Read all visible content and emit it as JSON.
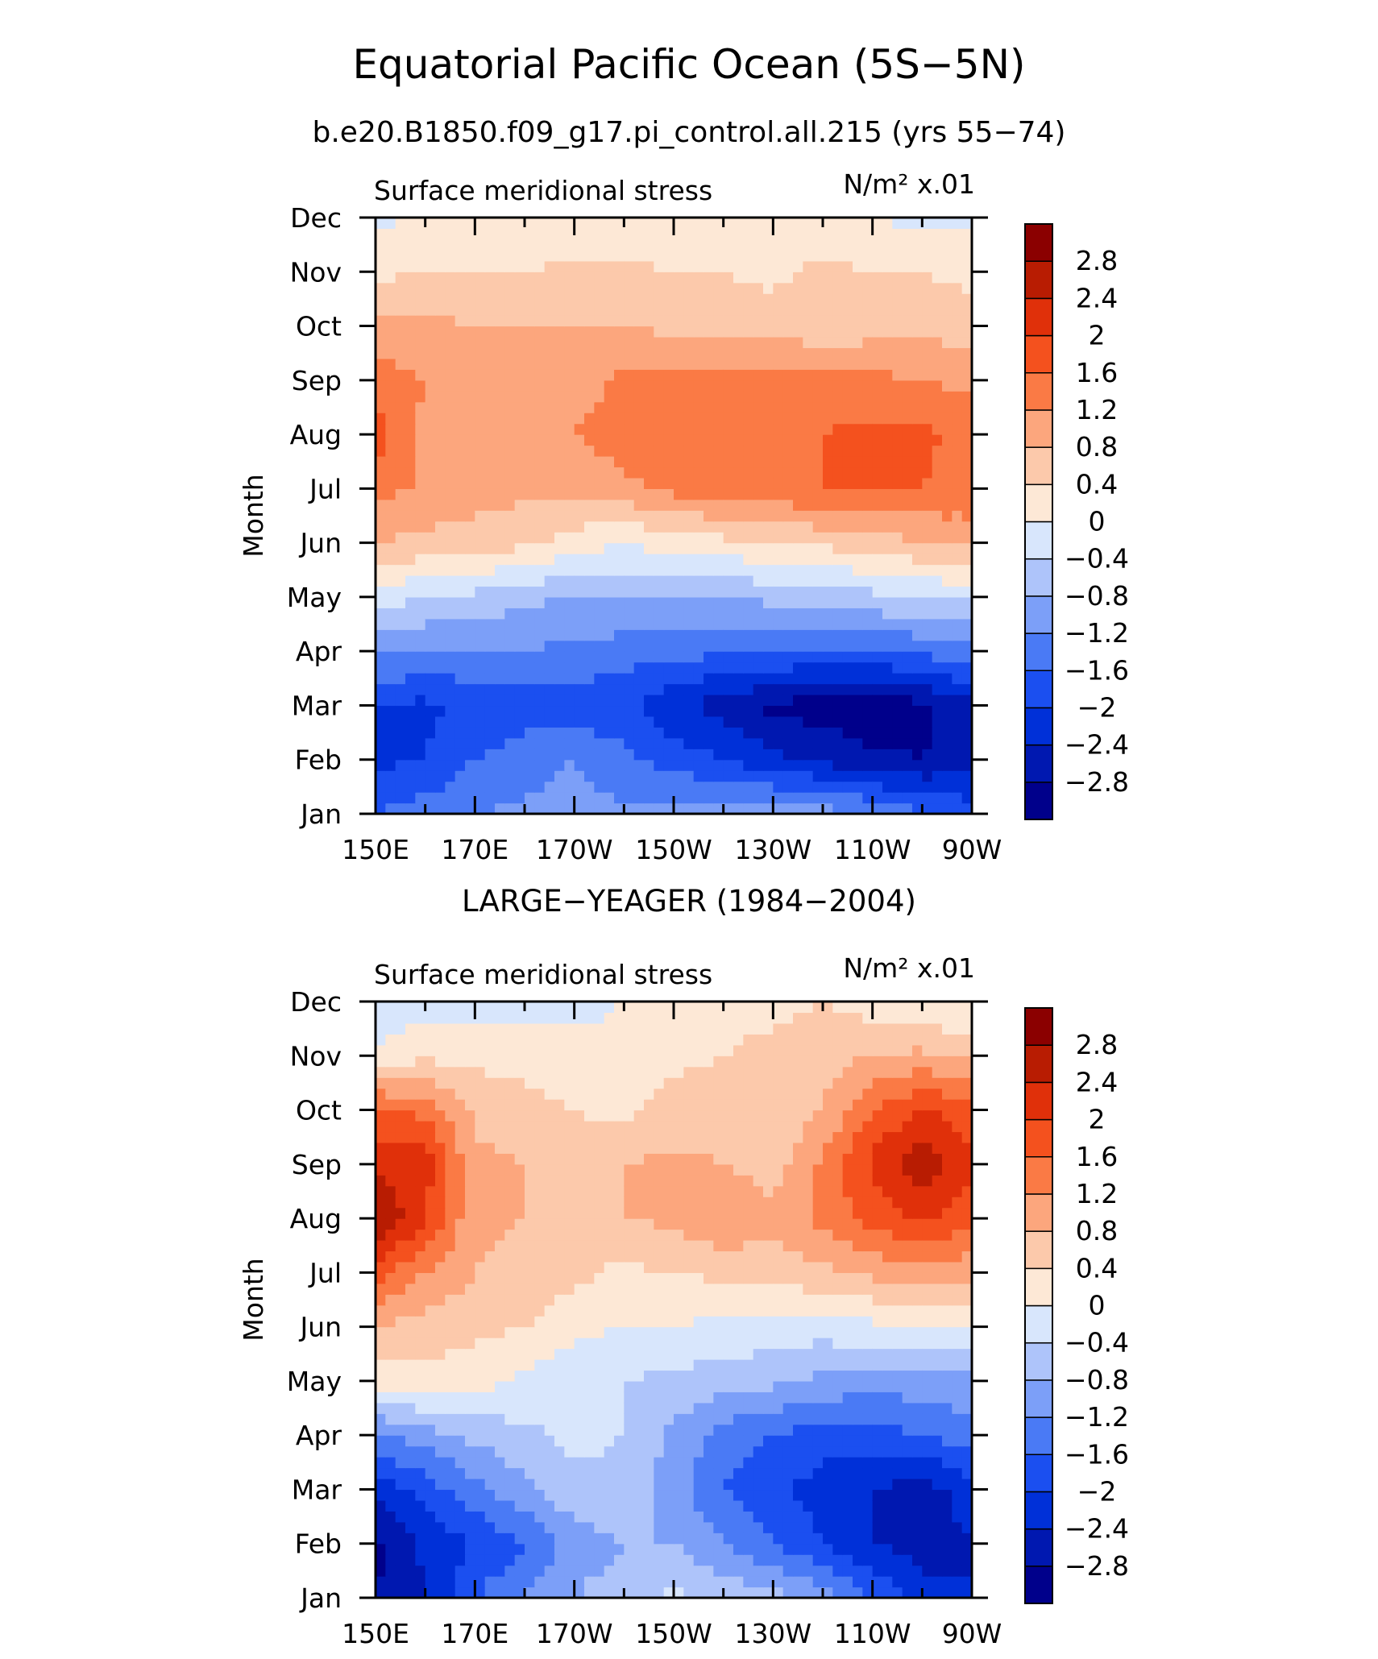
{
  "figure": {
    "title": "Equatorial Pacific Ocean (5S−5N)",
    "subtitle": "b.e20.B1850.f09_g17.pi_control.all.215 (yrs 55−74)"
  },
  "chart_data": [
    {
      "type": "heatmap",
      "variant": "filled-contour (Hovmöller)",
      "panel_title": "",
      "title": "Surface meridional stress",
      "units": "N/m² x.01",
      "xlabel": "",
      "ylabel": "Month",
      "x_tick_labels": [
        "150E",
        "170E",
        "170W",
        "150W",
        "130W",
        "110W",
        "90W"
      ],
      "y_tick_labels": [
        "Jan",
        "Feb",
        "Mar",
        "Apr",
        "May",
        "Jun",
        "Jul",
        "Aug",
        "Sep",
        "Oct",
        "Nov",
        "Dec"
      ],
      "x": [
        150,
        160,
        170,
        180,
        190,
        200,
        210,
        220,
        230,
        240,
        250,
        260,
        270
      ],
      "y": [
        "Jan",
        "Feb",
        "Mar",
        "Apr",
        "May",
        "Jun",
        "Jul",
        "Aug",
        "Sep",
        "Oct",
        "Nov",
        "Dec"
      ],
      "z": [
        [
          -1.6,
          -1.4,
          -1.2,
          -1.1,
          -1.0,
          -1.1,
          -1.0,
          -0.9,
          -0.9,
          -1.0,
          -1.2,
          -1.5,
          -1.8
        ],
        [
          -2.1,
          -2.0,
          -1.6,
          -1.4,
          -1.2,
          -1.5,
          -1.8,
          -2.0,
          -2.3,
          -2.5,
          -2.7,
          -2.8,
          -2.6
        ],
        [
          -2.0,
          -2.1,
          -1.9,
          -1.8,
          -1.8,
          -1.9,
          -2.3,
          -2.6,
          -2.9,
          -3.0,
          -3.1,
          -2.9,
          -2.5
        ],
        [
          -1.1,
          -1.2,
          -1.2,
          -1.2,
          -1.3,
          -1.4,
          -1.5,
          -1.5,
          -1.6,
          -1.6,
          -1.6,
          -1.5,
          -1.3
        ],
        [
          -0.2,
          -0.4,
          -0.5,
          -0.7,
          -0.8,
          -0.8,
          -0.8,
          -0.8,
          -0.7,
          -0.6,
          -0.5,
          -0.4,
          -0.3
        ],
        [
          0.8,
          0.7,
          0.6,
          0.5,
          0.2,
          0.0,
          0.2,
          0.3,
          0.4,
          0.5,
          0.6,
          0.8,
          0.9
        ],
        [
          1.4,
          1.1,
          1.0,
          0.9,
          0.9,
          1.1,
          1.3,
          1.4,
          1.5,
          1.6,
          1.7,
          1.6,
          1.5
        ],
        [
          1.8,
          1.1,
          1.1,
          1.1,
          1.2,
          1.4,
          1.5,
          1.5,
          1.5,
          1.6,
          1.7,
          1.7,
          1.4
        ],
        [
          1.4,
          1.2,
          1.1,
          1.0,
          1.0,
          1.3,
          1.3,
          1.4,
          1.4,
          1.4,
          1.3,
          1.2,
          1.1
        ],
        [
          1.0,
          0.9,
          0.8,
          0.8,
          0.8,
          0.8,
          0.7,
          0.7,
          0.6,
          0.5,
          0.6,
          0.7,
          0.6
        ],
        [
          0.3,
          0.4,
          0.4,
          0.4,
          0.5,
          0.5,
          0.4,
          0.4,
          0.3,
          0.5,
          0.4,
          0.4,
          0.3
        ],
        [
          -0.1,
          0.1,
          0.1,
          0.1,
          0.1,
          0.1,
          0.1,
          0.1,
          0.1,
          0.1,
          0.0,
          -0.1,
          -0.1
        ]
      ],
      "colorbar": {
        "levels": [
          -2.8,
          -2.4,
          -2.0,
          -1.6,
          -1.2,
          -0.8,
          -0.4,
          0,
          0.4,
          0.8,
          1.2,
          1.6,
          2.0,
          2.4,
          2.8
        ],
        "tick_labels": [
          "−2.8",
          "−2.4",
          "−2",
          "−1.6",
          "−1.2",
          "−0.8",
          "−0.4",
          "0",
          "0.4",
          "0.8",
          "1.2",
          "1.6",
          "2",
          "2.4",
          "2.8"
        ],
        "colors": [
          "#00008b",
          "#0018b0",
          "#0030d8",
          "#1b4ff0",
          "#4a7af5",
          "#7c9ff8",
          "#aec4fa",
          "#d8e6fc",
          "#fde8d6",
          "#fcc9ab",
          "#fca67d",
          "#fa7a45",
          "#f4511e",
          "#e0300a",
          "#b81c02",
          "#8b0000"
        ],
        "orientation": "vertical",
        "position": "right"
      }
    },
    {
      "type": "heatmap",
      "variant": "filled-contour (Hovmöller)",
      "panel_title": "LARGE−YEAGER (1984−2004)",
      "title": "Surface meridional stress",
      "units": "N/m² x.01",
      "xlabel": "",
      "ylabel": "Month",
      "x_tick_labels": [
        "150E",
        "170E",
        "170W",
        "150W",
        "130W",
        "110W",
        "90W"
      ],
      "y_tick_labels": [
        "Jan",
        "Feb",
        "Mar",
        "Apr",
        "May",
        "Jun",
        "Jul",
        "Aug",
        "Sep",
        "Oct",
        "Nov",
        "Dec"
      ],
      "x": [
        150,
        160,
        170,
        180,
        190,
        200,
        210,
        220,
        230,
        240,
        250,
        260,
        270
      ],
      "y": [
        "Jan",
        "Feb",
        "Mar",
        "Apr",
        "May",
        "Jun",
        "Jul",
        "Aug",
        "Sep",
        "Oct",
        "Nov",
        "Dec"
      ],
      "z": [
        [
          -2.8,
          -2.4,
          -1.6,
          -1.2,
          -0.8,
          -0.6,
          -0.3,
          -0.5,
          -0.6,
          -1.0,
          -1.6,
          -2.2,
          -2.4
        ],
        [
          -2.9,
          -2.3,
          -2.0,
          -1.6,
          -1.0,
          -0.8,
          -0.8,
          -1.2,
          -1.6,
          -2.0,
          -2.4,
          -2.6,
          -2.4
        ],
        [
          -2.3,
          -1.8,
          -1.3,
          -0.9,
          -0.5,
          -0.5,
          -1.0,
          -1.6,
          -1.9,
          -2.2,
          -2.4,
          -2.6,
          -2.2
        ],
        [
          -1.3,
          -1.0,
          -0.7,
          -0.5,
          -0.3,
          -0.4,
          -0.9,
          -1.4,
          -1.6,
          -1.8,
          -1.8,
          -1.6,
          -1.4
        ],
        [
          0.2,
          0.3,
          0.2,
          -0.1,
          -0.3,
          -0.4,
          -0.5,
          -0.6,
          -0.7,
          -0.9,
          -1.0,
          -1.0,
          -0.9
        ],
        [
          0.8,
          0.6,
          0.5,
          0.4,
          0.1,
          0.0,
          0.0,
          -0.1,
          -0.2,
          -0.2,
          -0.1,
          0.0,
          0.0
        ],
        [
          1.8,
          1.2,
          0.8,
          0.7,
          0.5,
          0.3,
          0.4,
          0.5,
          0.6,
          0.7,
          0.9,
          1.0,
          0.9
        ],
        [
          2.9,
          2.0,
          0.9,
          0.8,
          0.6,
          0.8,
          0.9,
          1.2,
          0.9,
          1.3,
          1.8,
          2.0,
          1.8
        ],
        [
          2.3,
          2.2,
          0.9,
          0.8,
          0.5,
          0.8,
          0.9,
          0.8,
          0.6,
          1.3,
          2.1,
          2.8,
          2.0
        ],
        [
          1.7,
          1.5,
          0.7,
          0.6,
          0.4,
          0.3,
          0.6,
          0.5,
          0.4,
          0.8,
          1.6,
          2.0,
          1.8
        ],
        [
          0.1,
          0.3,
          0.3,
          0.2,
          0.1,
          0.1,
          0.3,
          0.4,
          0.5,
          0.6,
          0.8,
          0.9,
          0.7
        ],
        [
          -0.3,
          -0.2,
          -0.2,
          -0.1,
          -0.1,
          0.0,
          0.2,
          0.3,
          0.3,
          0.4,
          0.2,
          0.0,
          0.0
        ]
      ],
      "colorbar": {
        "levels": [
          -2.8,
          -2.4,
          -2.0,
          -1.6,
          -1.2,
          -0.8,
          -0.4,
          0,
          0.4,
          0.8,
          1.2,
          1.6,
          2.0,
          2.4,
          2.8
        ],
        "tick_labels": [
          "−2.8",
          "−2.4",
          "−2",
          "−1.6",
          "−1.2",
          "−0.8",
          "−0.4",
          "0",
          "0.4",
          "0.8",
          "1.2",
          "1.6",
          "2",
          "2.4",
          "2.8"
        ],
        "colors": [
          "#00008b",
          "#0018b0",
          "#0030d8",
          "#1b4ff0",
          "#4a7af5",
          "#7c9ff8",
          "#aec4fa",
          "#d8e6fc",
          "#fde8d6",
          "#fcc9ab",
          "#fca67d",
          "#fa7a45",
          "#f4511e",
          "#e0300a",
          "#b81c02",
          "#8b0000"
        ],
        "orientation": "vertical",
        "position": "right"
      }
    }
  ]
}
